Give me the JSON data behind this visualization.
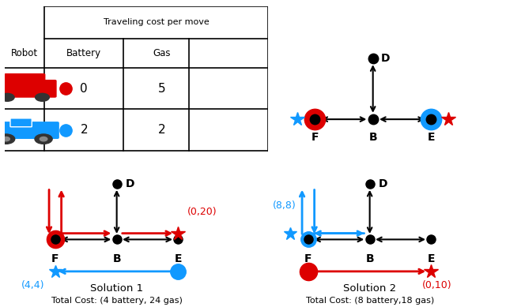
{
  "background": "#ffffff",
  "red": "#dd0000",
  "blue": "#1199ff",
  "table": {
    "header": "Traveling cost per move",
    "col_robot": "Robot",
    "col_battery": "Battery",
    "col_gas": "Gas",
    "r1_battery": "0",
    "r1_gas": "5",
    "r2_battery": "2",
    "r2_gas": "2"
  },
  "sol1": {
    "title": "Solution 1",
    "cost": "Total Cost: (4 battery, 24 gas)",
    "red_label": "(0,20)",
    "blue_label": "(4,4)"
  },
  "sol2": {
    "title": "Solution 2",
    "cost": "Total Cost: (8 battery,18 gas)",
    "blue_label": "(8,8)",
    "red_label": "(0,10)"
  }
}
